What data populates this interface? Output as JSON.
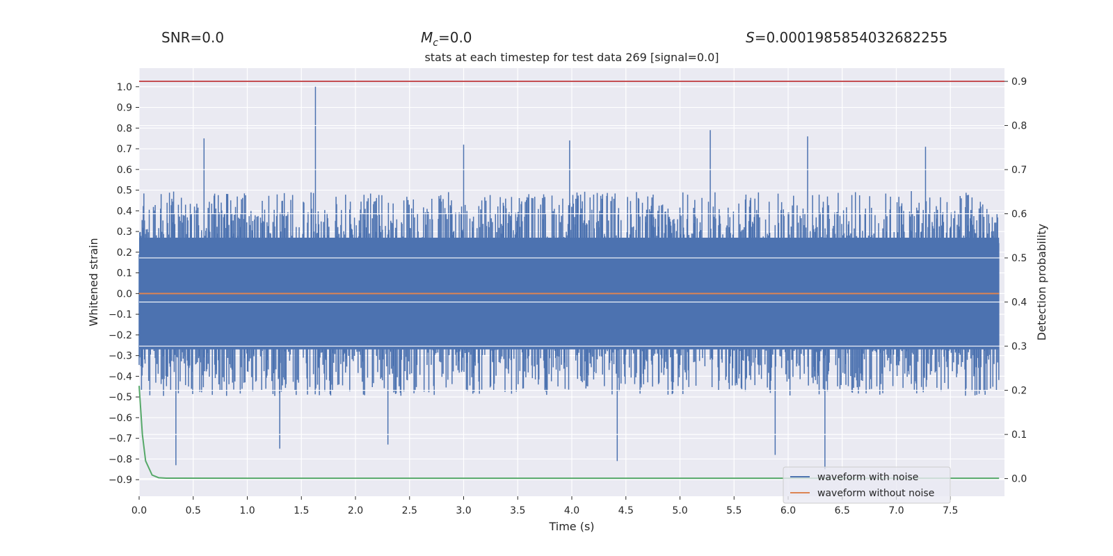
{
  "header": {
    "snr_label": "SNR=0.0",
    "mc_symbol": "M",
    "mc_subscript": "c",
    "mc_value": "=0.0",
    "s_symbol": "S",
    "s_value": "=0.0001985854032682255"
  },
  "chart_data": {
    "type": "line",
    "title": "stats at each timestep for test data 269 [signal=0.0]",
    "xlabel": "Time (s)",
    "ylabel": "Whitened strain",
    "y2label": "Detection probability",
    "xlim": [
      0.0,
      8.0
    ],
    "ylim": [
      -0.98,
      1.09
    ],
    "y2lim": [
      -0.04,
      0.93
    ],
    "x_ticks": [
      0.0,
      0.5,
      1.0,
      1.5,
      2.0,
      2.5,
      3.0,
      3.5,
      4.0,
      4.5,
      5.0,
      5.5,
      6.0,
      6.5,
      7.0,
      7.5
    ],
    "x_tick_labels": [
      "0.0",
      "0.5",
      "1.0",
      "1.5",
      "2.0",
      "2.5",
      "3.0",
      "3.5",
      "4.0",
      "4.5",
      "5.0",
      "5.5",
      "6.0",
      "6.5",
      "7.0",
      "7.5"
    ],
    "y_ticks": [
      1.0,
      0.9,
      0.8,
      0.7,
      0.6,
      0.5,
      0.4,
      0.3,
      0.2,
      0.1,
      0.0,
      -0.1,
      -0.2,
      -0.3,
      -0.4,
      -0.5,
      -0.6,
      -0.7,
      -0.8,
      -0.9
    ],
    "y_tick_labels": [
      "1.0",
      "0.9",
      "0.8",
      "0.7",
      "0.6",
      "0.5",
      "0.4",
      "0.3",
      "0.2",
      "0.1",
      "0.0",
      "−0.1",
      "−0.2",
      "−0.3",
      "−0.4",
      "−0.5",
      "−0.6",
      "−0.7",
      "−0.8",
      "−0.9"
    ],
    "y2_ticks": [
      0.9,
      0.8,
      0.7,
      0.6,
      0.5,
      0.4,
      0.3,
      0.2,
      0.1,
      0.0
    ],
    "y2_tick_labels": [
      "0.9",
      "0.8",
      "0.7",
      "0.6",
      "0.5",
      "0.4",
      "0.3",
      "0.2",
      "0.1",
      "0.0"
    ],
    "grid": true,
    "legend_position": "bottom-right",
    "colors": {
      "background": "#eaeaf2",
      "grid": "#ffffff",
      "noise": "#4c72b0",
      "clean": "#dd8452",
      "probability": "#55a868",
      "threshold": "#c44e52"
    },
    "series": [
      {
        "name": "waveform with noise",
        "axis": "left",
        "description_type": "noise-band",
        "x_range": [
          0.0,
          7.95
        ],
        "typical_high": 0.45,
        "typical_low": -0.45,
        "peaks": [
          {
            "x": 1.63,
            "y": 1.0
          },
          {
            "x": 0.6,
            "y": 0.75
          },
          {
            "x": 5.28,
            "y": 0.79
          },
          {
            "x": 3.98,
            "y": 0.74
          },
          {
            "x": 6.18,
            "y": 0.76
          },
          {
            "x": 3.0,
            "y": 0.72
          },
          {
            "x": 7.27,
            "y": 0.71
          },
          {
            "x": 6.34,
            "y": -0.85
          },
          {
            "x": 0.34,
            "y": -0.83
          },
          {
            "x": 4.42,
            "y": -0.81
          },
          {
            "x": 5.88,
            "y": -0.78
          },
          {
            "x": 1.3,
            "y": -0.75
          },
          {
            "x": 2.3,
            "y": -0.73
          }
        ]
      },
      {
        "name": "waveform without noise",
        "axis": "left",
        "points": [
          [
            0.0,
            0.0
          ],
          [
            7.95,
            0.0
          ]
        ]
      },
      {
        "name": "",
        "axis": "right",
        "points": [
          [
            0.0,
            0.21
          ],
          [
            0.03,
            0.1
          ],
          [
            0.06,
            0.04
          ],
          [
            0.12,
            0.008
          ],
          [
            0.18,
            0.002
          ],
          [
            0.25,
            0.001
          ],
          [
            1.0,
            0.0008
          ],
          [
            7.95,
            0.0008
          ]
        ]
      },
      {
        "name": "",
        "axis": "right",
        "points": [
          [
            0.0,
            0.9
          ],
          [
            8.0,
            0.9
          ]
        ]
      }
    ]
  }
}
